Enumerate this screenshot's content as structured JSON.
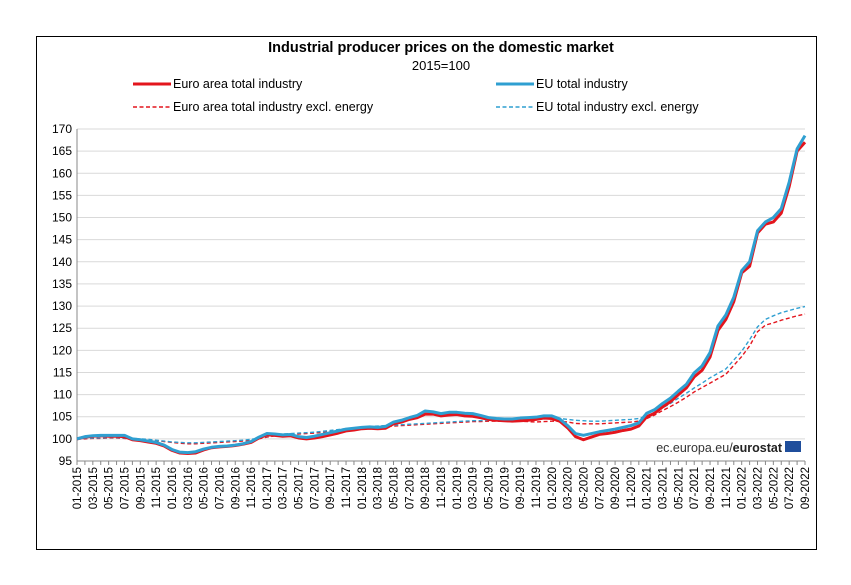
{
  "chart_data": {
    "type": "line",
    "title": "Industrial producer prices on the domestic market",
    "subtitle": "2015=100",
    "source": "ec.europa.eu/",
    "source_brand": "eurostat",
    "ylim": [
      95,
      170
    ],
    "yticks": [
      95,
      100,
      105,
      110,
      115,
      120,
      125,
      130,
      135,
      140,
      145,
      150,
      155,
      160,
      165,
      170
    ],
    "grid": true,
    "legend_position": "top",
    "x": [
      "01-2015",
      "02-2015",
      "03-2015",
      "04-2015",
      "05-2015",
      "06-2015",
      "07-2015",
      "08-2015",
      "09-2015",
      "10-2015",
      "11-2015",
      "12-2015",
      "01-2016",
      "02-2016",
      "03-2016",
      "04-2016",
      "05-2016",
      "06-2016",
      "07-2016",
      "08-2016",
      "09-2016",
      "10-2016",
      "11-2016",
      "12-2016",
      "01-2017",
      "02-2017",
      "03-2017",
      "04-2017",
      "05-2017",
      "06-2017",
      "07-2017",
      "08-2017",
      "09-2017",
      "10-2017",
      "11-2017",
      "12-2017",
      "01-2018",
      "02-2018",
      "03-2018",
      "04-2018",
      "05-2018",
      "06-2018",
      "07-2018",
      "08-2018",
      "09-2018",
      "10-2018",
      "11-2018",
      "12-2018",
      "01-2019",
      "02-2019",
      "03-2019",
      "04-2019",
      "05-2019",
      "06-2019",
      "07-2019",
      "08-2019",
      "09-2019",
      "10-2019",
      "11-2019",
      "12-2019",
      "01-2020",
      "02-2020",
      "03-2020",
      "04-2020",
      "05-2020",
      "06-2020",
      "07-2020",
      "08-2020",
      "09-2020",
      "10-2020",
      "11-2020",
      "12-2020",
      "01-2021",
      "02-2021",
      "03-2021",
      "04-2021",
      "05-2021",
      "06-2021",
      "07-2021",
      "08-2021",
      "09-2021",
      "10-2021",
      "11-2021",
      "12-2021",
      "01-2022",
      "02-2022",
      "03-2022",
      "04-2022",
      "05-2022",
      "06-2022",
      "07-2022",
      "08-2022",
      "09-2022"
    ],
    "xtick_labels": [
      "01-2015",
      "03-2015",
      "05-2015",
      "07-2015",
      "09-2015",
      "11-2015",
      "01-2016",
      "03-2016",
      "05-2016",
      "07-2016",
      "09-2016",
      "11-2016",
      "01-2017",
      "03-2017",
      "05-2017",
      "07-2017",
      "09-2017",
      "11-2017",
      "01-2018",
      "03-2018",
      "05-2018",
      "07-2018",
      "09-2018",
      "11-2018",
      "01-2019",
      "03-2019",
      "05-2019",
      "07-2019",
      "09-2019",
      "11-2019",
      "01-2020",
      "03-2020",
      "05-2020",
      "07-2020",
      "09-2020",
      "11-2020",
      "01-2021",
      "03-2021",
      "05-2021",
      "07-2021",
      "09-2021",
      "11-2021",
      "01-2022",
      "03-2022",
      "05-2022",
      "07-2022",
      "09-2022"
    ],
    "series": [
      {
        "name": "Euro area total industry",
        "color": "#e3151d",
        "style": "solid",
        "values": [
          100.0,
          100.4,
          100.6,
          100.7,
          100.6,
          100.6,
          100.5,
          99.8,
          99.6,
          99.3,
          99.0,
          98.4,
          97.4,
          96.8,
          96.7,
          96.8,
          97.5,
          98.0,
          98.2,
          98.3,
          98.5,
          98.8,
          99.2,
          100.2,
          100.9,
          100.8,
          100.6,
          100.7,
          100.2,
          100.0,
          100.2,
          100.5,
          100.9,
          101.3,
          101.8,
          102.0,
          102.3,
          102.4,
          102.3,
          102.4,
          103.4,
          103.8,
          104.4,
          104.8,
          105.6,
          105.6,
          105.2,
          105.4,
          105.5,
          105.2,
          105.1,
          104.8,
          104.4,
          104.2,
          104.1,
          104.0,
          104.1,
          104.2,
          104.4,
          104.7,
          104.6,
          104.0,
          102.5,
          100.5,
          99.8,
          100.4,
          101.0,
          101.2,
          101.5,
          101.9,
          102.2,
          102.9,
          105.0,
          105.8,
          107.2,
          108.4,
          110.0,
          111.5,
          114.0,
          115.5,
          118.5,
          124.5,
          127.0,
          131.0,
          137.5,
          139.0,
          146.5,
          148.5,
          149.0,
          151.0,
          157.0,
          165.0,
          167.0
        ]
      },
      {
        "name": "EU total industry",
        "color": "#2f9fd1",
        "style": "solid",
        "values": [
          100.0,
          100.5,
          100.7,
          100.8,
          100.8,
          100.8,
          100.8,
          100.0,
          99.8,
          99.5,
          99.2,
          98.6,
          97.6,
          97.0,
          96.9,
          97.1,
          97.7,
          98.1,
          98.3,
          98.4,
          98.6,
          98.9,
          99.4,
          100.4,
          101.2,
          101.1,
          100.9,
          101.0,
          100.5,
          100.3,
          100.6,
          101.0,
          101.4,
          101.8,
          102.2,
          102.4,
          102.6,
          102.7,
          102.6,
          102.8,
          103.8,
          104.2,
          104.8,
          105.3,
          106.3,
          106.1,
          105.7,
          106.0,
          106.0,
          105.8,
          105.7,
          105.3,
          104.8,
          104.6,
          104.5,
          104.5,
          104.7,
          104.8,
          104.9,
          105.2,
          105.2,
          104.5,
          103.0,
          101.2,
          100.8,
          101.2,
          101.6,
          101.9,
          102.2,
          102.6,
          103.0,
          103.6,
          105.8,
          106.6,
          108.0,
          109.2,
          110.8,
          112.3,
          114.9,
          116.5,
          119.5,
          125.5,
          128.0,
          132.0,
          138.0,
          140.0,
          147.0,
          149.0,
          150.0,
          152.0,
          158.0,
          165.5,
          168.5
        ]
      },
      {
        "name": "Euro area total industry excl. energy",
        "color": "#e3151d",
        "style": "dashed",
        "values": [
          100.0,
          100.0,
          100.1,
          100.1,
          100.2,
          100.2,
          100.1,
          100.0,
          99.9,
          99.8,
          99.6,
          99.4,
          99.2,
          99.0,
          98.9,
          98.9,
          99.0,
          99.1,
          99.2,
          99.3,
          99.4,
          99.5,
          99.7,
          100.0,
          100.4,
          100.7,
          100.9,
          101.0,
          101.1,
          101.2,
          101.3,
          101.5,
          101.7,
          101.9,
          102.1,
          102.3,
          102.5,
          102.6,
          102.7,
          102.8,
          102.9,
          103.0,
          103.1,
          103.2,
          103.3,
          103.4,
          103.5,
          103.6,
          103.7,
          103.8,
          103.9,
          103.9,
          104.0,
          104.0,
          104.0,
          104.0,
          104.0,
          103.9,
          103.8,
          103.9,
          104.0,
          104.0,
          103.8,
          103.5,
          103.4,
          103.4,
          103.4,
          103.5,
          103.6,
          103.7,
          103.8,
          104.0,
          104.6,
          105.4,
          106.4,
          107.3,
          108.3,
          109.4,
          110.6,
          111.6,
          112.6,
          113.6,
          114.6,
          116.6,
          118.6,
          121.0,
          124.2,
          125.7,
          126.2,
          126.8,
          127.3,
          127.8,
          128.2
        ]
      },
      {
        "name": "EU total industry excl. energy",
        "color": "#2f9fd1",
        "style": "dashed",
        "values": [
          100.0,
          100.1,
          100.2,
          100.2,
          100.3,
          100.3,
          100.2,
          100.1,
          100.0,
          99.9,
          99.7,
          99.5,
          99.3,
          99.2,
          99.1,
          99.1,
          99.2,
          99.3,
          99.4,
          99.5,
          99.6,
          99.7,
          99.9,
          100.2,
          100.6,
          100.9,
          101.1,
          101.2,
          101.3,
          101.4,
          101.5,
          101.7,
          101.9,
          102.1,
          102.3,
          102.5,
          102.7,
          102.8,
          102.9,
          103.0,
          103.1,
          103.2,
          103.3,
          103.4,
          103.5,
          103.6,
          103.7,
          103.8,
          103.9,
          104.0,
          104.1,
          104.1,
          104.2,
          104.2,
          104.2,
          104.2,
          104.2,
          104.2,
          104.3,
          104.5,
          104.6,
          104.6,
          104.4,
          104.2,
          104.1,
          104.0,
          104.0,
          104.1,
          104.2,
          104.3,
          104.4,
          104.6,
          105.2,
          106.0,
          107.0,
          108.0,
          109.2,
          110.3,
          111.5,
          112.6,
          113.8,
          114.8,
          115.8,
          117.8,
          119.8,
          122.4,
          125.3,
          127.0,
          127.8,
          128.5,
          129.0,
          129.5,
          129.9
        ]
      }
    ]
  }
}
